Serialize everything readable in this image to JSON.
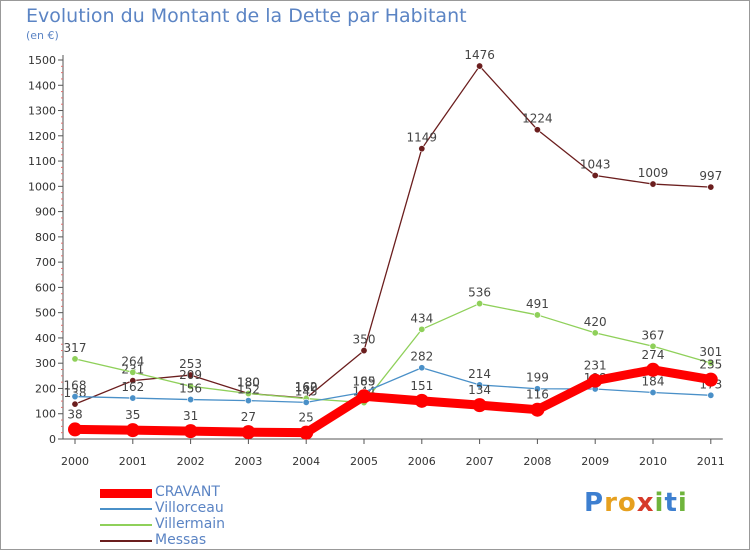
{
  "title": "Evolution du Montant de la Dette par Habitant",
  "subtitle": "(en €)",
  "logo": {
    "letters": [
      {
        "ch": "P",
        "color": "#3d7fd0"
      },
      {
        "ch": "r",
        "color": "#e6a01f"
      },
      {
        "ch": "o",
        "color": "#e6a01f"
      },
      {
        "ch": "x",
        "color": "#d63a2a"
      },
      {
        "ch": "i",
        "color": "#6fb43c"
      },
      {
        "ch": "t",
        "color": "#3d7fd0"
      },
      {
        "ch": "i",
        "color": "#6fb43c"
      }
    ]
  },
  "chart_data": {
    "type": "line",
    "title": "Evolution du Montant de la Dette par Habitant",
    "ylabel": "(en €)",
    "ylim": [
      0,
      1500
    ],
    "yticks": [
      0,
      100,
      200,
      300,
      400,
      500,
      600,
      700,
      800,
      900,
      1000,
      1100,
      1200,
      1300,
      1400,
      1500
    ],
    "grid": false,
    "legend": "bottom-left",
    "categories": [
      "2000",
      "2001",
      "2002",
      "2003",
      "2004",
      "2005",
      "2006",
      "2007",
      "2008",
      "2009",
      "2010",
      "2011"
    ],
    "series": [
      {
        "name": "Messas",
        "color": "#6b1e1e",
        "values": [
          138,
          231,
          253,
          180,
          162,
          350,
          1149,
          1476,
          1224,
          1043,
          1009,
          997
        ]
      },
      {
        "name": "Villermain",
        "color": "#8fd05a",
        "values": [
          317,
          264,
          209,
          180,
          160,
          144,
          434,
          536,
          491,
          420,
          367,
          301
        ]
      },
      {
        "name": "Villorceau",
        "color": "#4a90c8",
        "values": [
          168,
          162,
          156,
          152,
          145,
          185,
          282,
          214,
          199,
          198,
          184,
          173
        ]
      },
      {
        "name": "CRAVANT",
        "color": "#ff0000",
        "values": [
          38,
          35,
          31,
          27,
          25,
          169,
          151,
          134,
          116,
          231,
          274,
          235
        ]
      }
    ]
  }
}
